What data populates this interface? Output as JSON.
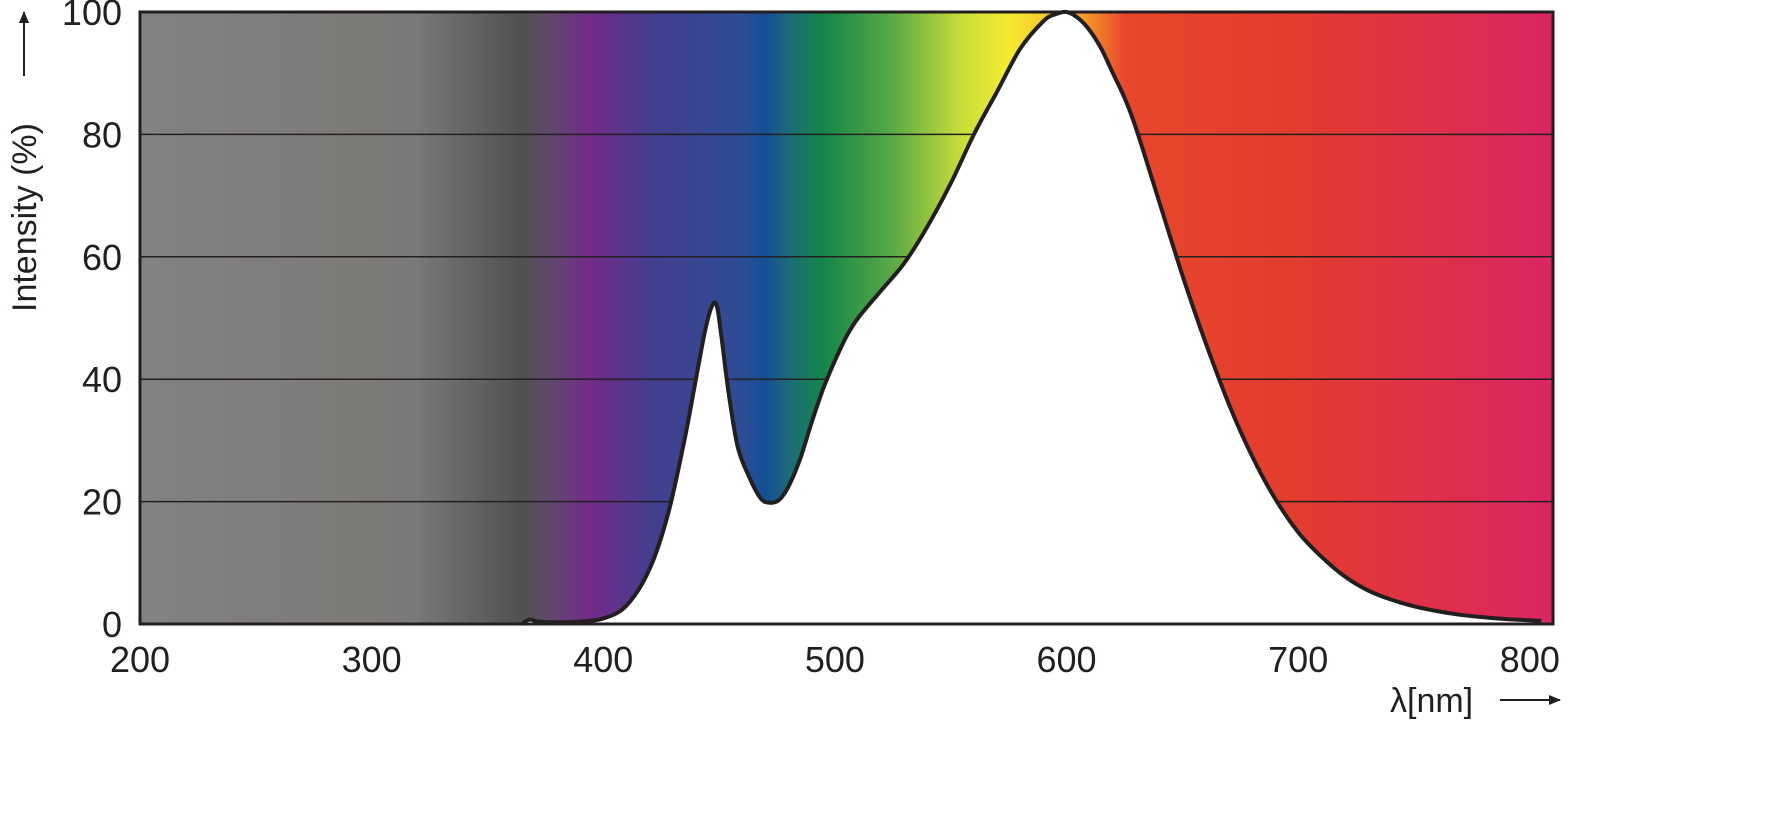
{
  "chart_data": {
    "type": "area",
    "title": "",
    "xlabel": "λ[nm]",
    "ylabel": "Intensity (%)",
    "xlim": [
      200,
      810
    ],
    "ylim": [
      0,
      100
    ],
    "x_ticks": [
      200,
      300,
      400,
      500,
      600,
      700,
      800
    ],
    "y_ticks": [
      0,
      20,
      40,
      60,
      80,
      100
    ],
    "grid": "horizontal",
    "legend": "none",
    "background": "visible spectrum gradient (gray below ~365 nm, violet to red above)",
    "spectrum_colors": [
      {
        "nm": 200,
        "color": "#828282"
      },
      {
        "nm": 300,
        "color": "#7c7a77"
      },
      {
        "nm": 320,
        "color": "#787878"
      },
      {
        "nm": 365,
        "color": "#505050"
      },
      {
        "nm": 375,
        "color": "#5e4a68"
      },
      {
        "nm": 395,
        "color": "#732a8a"
      },
      {
        "nm": 420,
        "color": "#433d8e"
      },
      {
        "nm": 460,
        "color": "#2d4c94"
      },
      {
        "nm": 470,
        "color": "#124f93"
      },
      {
        "nm": 480,
        "color": "#1d6a7a"
      },
      {
        "nm": 495,
        "color": "#138649"
      },
      {
        "nm": 525,
        "color": "#5aaa45"
      },
      {
        "nm": 555,
        "color": "#c8de3a"
      },
      {
        "nm": 575,
        "color": "#f5eb30"
      },
      {
        "nm": 605,
        "color": "#f6a727"
      },
      {
        "nm": 625,
        "color": "#e9472c"
      },
      {
        "nm": 700,
        "color": "#e23c2d"
      },
      {
        "nm": 810,
        "color": "#dc2563"
      }
    ],
    "series": [
      {
        "x": [
          365,
          368,
          372,
          380,
          390,
          400,
          410,
          420,
          428,
          435,
          440,
          444,
          447,
          449,
          451,
          454,
          458,
          463,
          468,
          472,
          476,
          480,
          485,
          490,
          495,
          500,
          505,
          510,
          520,
          530,
          540,
          550,
          560,
          570,
          580,
          590,
          595,
          600,
          605,
          610,
          615,
          620,
          625,
          630,
          640,
          650,
          660,
          670,
          680,
          690,
          700,
          710,
          720,
          730,
          740,
          750,
          760,
          770,
          780,
          790,
          800,
          805
        ],
        "y": [
          0,
          0.7,
          0.4,
          0.3,
          0.4,
          0.9,
          3,
          9,
          18,
          30,
          40,
          48,
          52,
          52,
          47,
          38,
          29,
          24,
          20.5,
          19.8,
          20.3,
          22.5,
          27,
          33,
          38.5,
          43,
          47,
          50,
          54.5,
          59,
          65,
          72,
          80,
          87,
          94,
          98.5,
          99.6,
          100,
          99,
          97,
          94,
          90,
          86,
          81,
          69,
          57,
          46,
          36,
          27.5,
          20.5,
          15,
          11,
          7.8,
          5.5,
          4,
          2.9,
          2.1,
          1.5,
          1.1,
          0.8,
          0.6,
          0.5
        ]
      }
    ]
  }
}
